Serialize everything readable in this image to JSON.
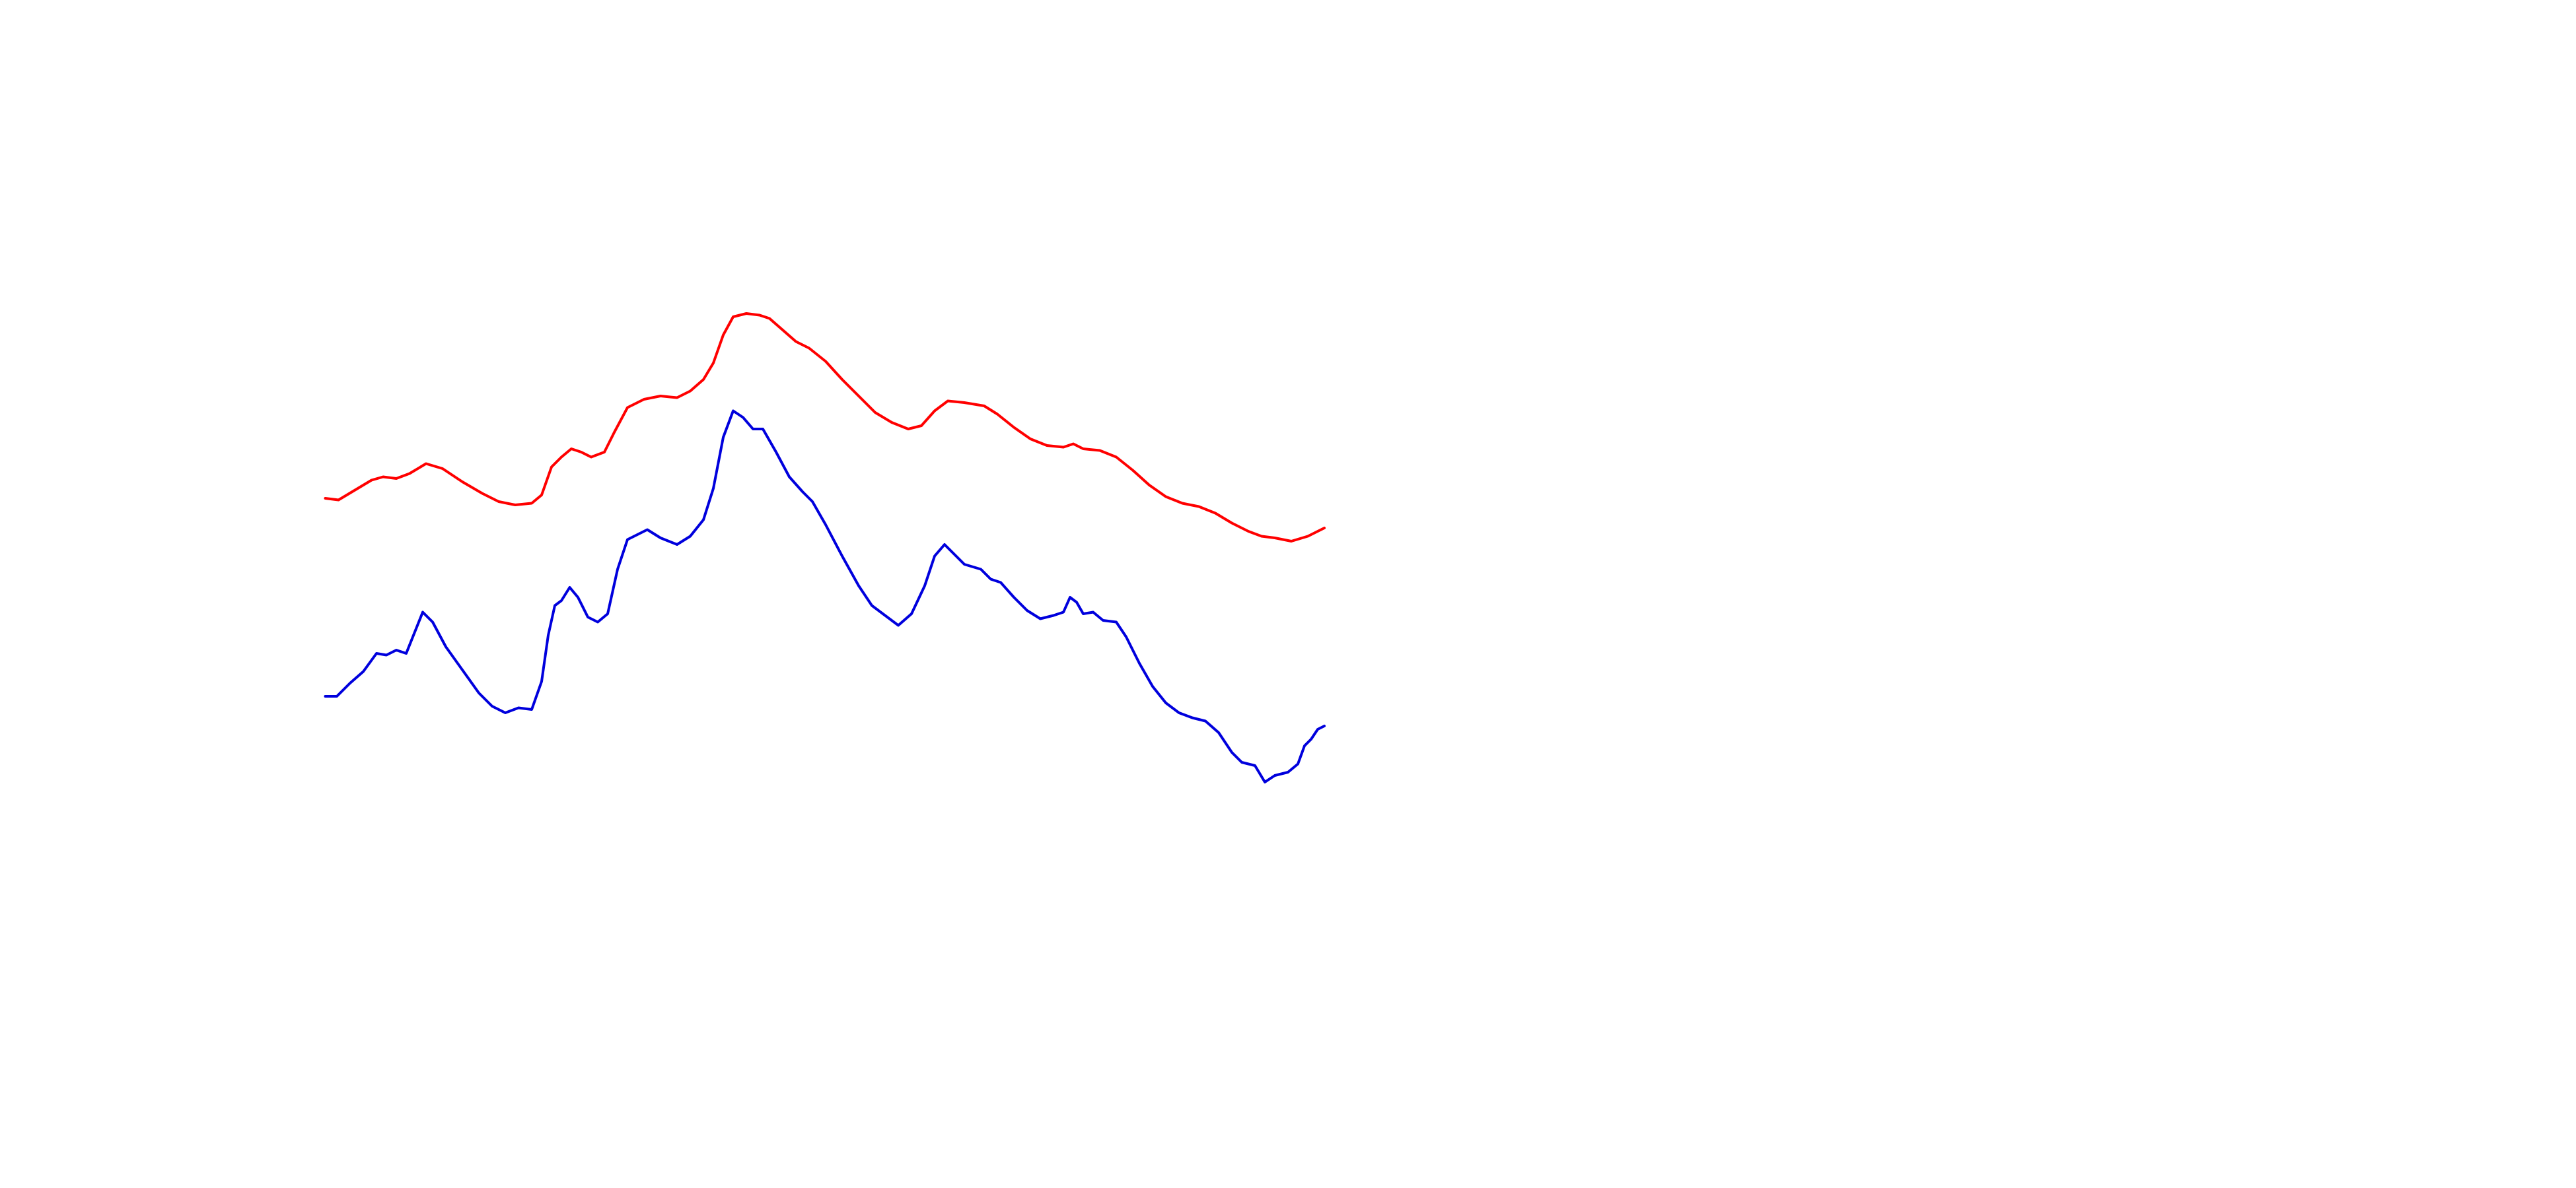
{
  "chart_data": {
    "type": "line",
    "xlim": [
      0,
      1560
    ],
    "ylim": [
      0,
      720
    ],
    "series": [
      {
        "color": "#ff0000",
        "x": [
          197,
          205,
          215,
          225,
          232,
          240,
          248,
          258,
          268,
          280,
          292,
          302,
          312,
          322,
          328,
          334,
          340,
          346,
          352,
          358,
          366,
          372,
          380,
          390,
          400,
          410,
          418,
          426,
          432,
          438,
          444,
          452,
          460,
          466,
          474,
          482,
          490,
          500,
          510,
          520,
          530,
          540,
          550,
          558,
          566,
          574,
          584,
          596,
          604,
          614,
          624,
          634,
          644,
          650,
          656,
          666,
          676,
          686,
          696,
          706,
          716,
          726,
          736,
          746,
          756,
          764,
          772,
          782,
          792,
          802
        ],
        "values": [
          418,
          417,
          423,
          429,
          431,
          430,
          433,
          439,
          436,
          428,
          421,
          416,
          414,
          415,
          420,
          437,
          443,
          448,
          446,
          443,
          446,
          458,
          473,
          478,
          480,
          479,
          483,
          490,
          500,
          517,
          528,
          530,
          529,
          527,
          520,
          513,
          509,
          501,
          490,
          480,
          470,
          464,
          460,
          462,
          471,
          477,
          476,
          474,
          469,
          461,
          454,
          450,
          449,
          451,
          448,
          447,
          443,
          435,
          426,
          419,
          415,
          413,
          409,
          403,
          398,
          395,
          394,
          392,
          395,
          400
        ]
      },
      {
        "color": "#0000dd",
        "x": [
          197,
          204,
          212,
          220,
          228,
          234,
          240,
          246,
          250,
          256,
          262,
          270,
          280,
          290,
          298,
          306,
          314,
          322,
          328,
          332,
          336,
          340,
          345,
          350,
          356,
          362,
          368,
          374,
          380,
          386,
          392,
          400,
          410,
          418,
          426,
          432,
          438,
          444,
          450,
          456,
          462,
          470,
          478,
          486,
          492,
          500,
          510,
          520,
          528,
          536,
          544,
          552,
          560,
          566,
          572,
          578,
          584,
          594,
          600,
          606,
          614,
          622,
          630,
          638,
          644,
          648,
          652,
          656,
          662,
          668,
          676,
          682,
          690,
          698,
          706,
          714,
          722,
          730,
          738,
          746,
          752,
          760,
          766,
          772,
          780,
          786,
          790,
          794,
          798,
          802
        ],
        "values": [
          298,
          298,
          306,
          313,
          324,
          323,
          326,
          324,
          334,
          349,
          343,
          328,
          314,
          300,
          292,
          288,
          291,
          290,
          307,
          335,
          353,
          356,
          364,
          358,
          346,
          343,
          348,
          375,
          393,
          396,
          399,
          394,
          390,
          395,
          405,
          424,
          455,
          471,
          467,
          460,
          460,
          446,
          431,
          422,
          416,
          402,
          383,
          365,
          353,
          347,
          341,
          348,
          365,
          383,
          390,
          384,
          378,
          375,
          369,
          367,
          358,
          350,
          345,
          347,
          349,
          358,
          355,
          348,
          349,
          344,
          343,
          334,
          318,
          304,
          294,
          288,
          285,
          283,
          276,
          264,
          258,
          256,
          246,
          250,
          252,
          257,
          268,
          272,
          278,
          280
        ]
      }
    ]
  }
}
